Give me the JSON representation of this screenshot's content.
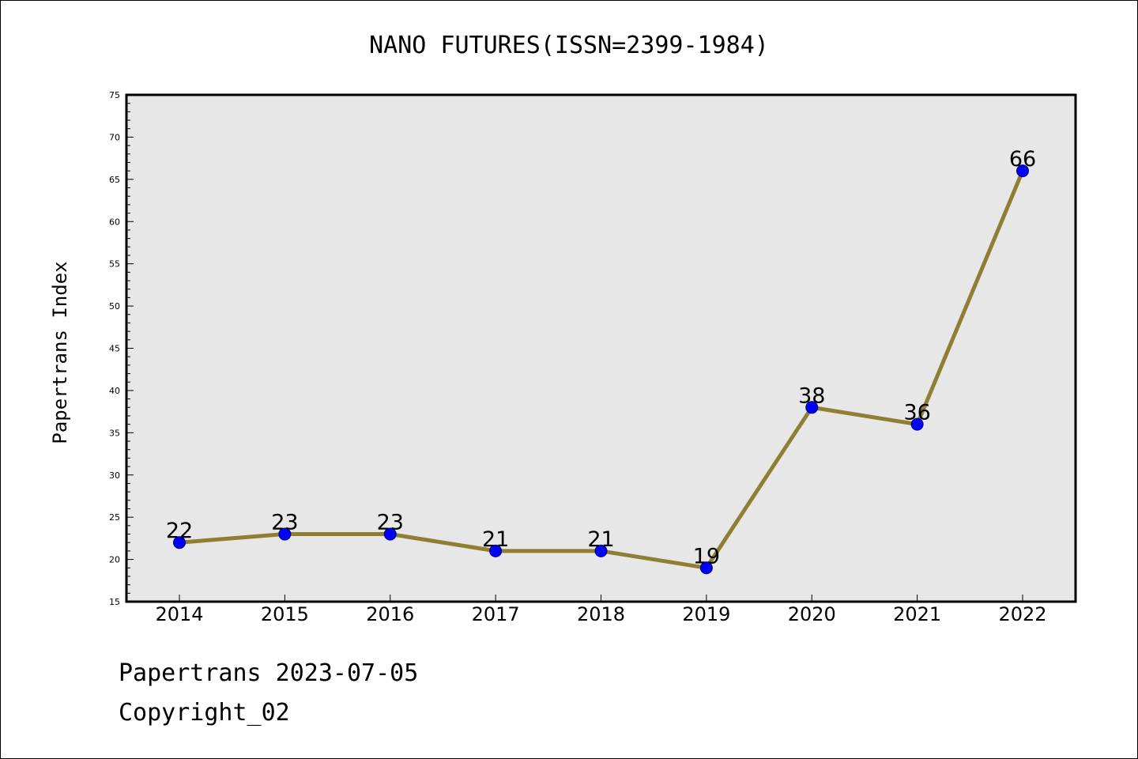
{
  "chart_data": {
    "type": "line",
    "title": "NANO FUTURES(ISSN=2399-1984)",
    "xlabel": "",
    "ylabel": "Papertrans Index",
    "categories": [
      "2014",
      "2015",
      "2016",
      "2017",
      "2018",
      "2019",
      "2020",
      "2021",
      "2022"
    ],
    "values": [
      22,
      23,
      23,
      21,
      21,
      19,
      38,
      36,
      66
    ],
    "ylim": [
      15,
      75
    ],
    "yticks": [
      15,
      20,
      25,
      30,
      35,
      40,
      45,
      50,
      55,
      60,
      65,
      70,
      75
    ],
    "grid": false,
    "data_labels": true,
    "colors": {
      "line": "#8f7f34",
      "marker": "#0000ff",
      "plot_background": "#e7e7e7"
    }
  },
  "footer": {
    "line1": "Papertrans 2023-07-05",
    "line2": "Copyright_02"
  }
}
